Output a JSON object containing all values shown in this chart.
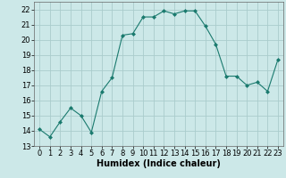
{
  "x": [
    0,
    1,
    2,
    3,
    4,
    5,
    6,
    7,
    8,
    9,
    10,
    11,
    12,
    13,
    14,
    15,
    16,
    17,
    18,
    19,
    20,
    21,
    22,
    23
  ],
  "y": [
    14.1,
    13.6,
    14.6,
    15.5,
    15.0,
    13.9,
    16.6,
    17.5,
    20.3,
    20.4,
    21.5,
    21.5,
    21.9,
    21.7,
    21.9,
    21.9,
    20.9,
    19.7,
    17.6,
    17.6,
    17.0,
    17.2,
    16.6,
    18.7
  ],
  "line_color": "#1a7a6e",
  "marker": "D",
  "marker_size": 2,
  "bg_color": "#cce8e8",
  "grid_color": "#aacccc",
  "xlabel": "Humidex (Indice chaleur)",
  "xlim": [
    -0.5,
    23.5
  ],
  "ylim": [
    13,
    22.5
  ],
  "yticks": [
    13,
    14,
    15,
    16,
    17,
    18,
    19,
    20,
    21,
    22
  ],
  "xticks": [
    0,
    1,
    2,
    3,
    4,
    5,
    6,
    7,
    8,
    9,
    10,
    11,
    12,
    13,
    14,
    15,
    16,
    17,
    18,
    19,
    20,
    21,
    22,
    23
  ],
  "label_fontsize": 7,
  "tick_fontsize": 6
}
